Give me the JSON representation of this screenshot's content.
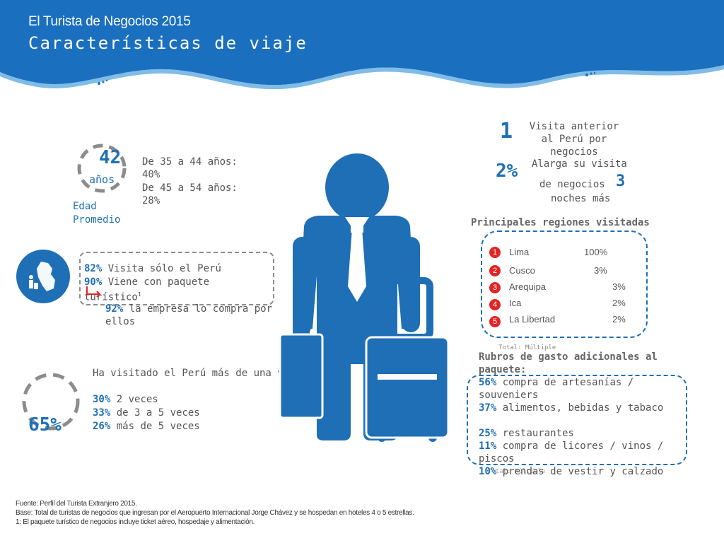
{
  "header": {
    "subtitle": "El Turista de Negocios 2015",
    "title": "Características de viaje"
  },
  "age": {
    "value": "42",
    "unit": "años",
    "label_line1": "Edad",
    "label_line2": "Promedio",
    "range1": "De 35 a 44 años: 40%",
    "range2": "De 45 a 54 años: 28%"
  },
  "peru_box": {
    "pct1": "82%",
    "text1": "Visita sólo el Perú",
    "pct2": "90%",
    "text2": "Viene con paquete turístico",
    "footnote_mark": "1",
    "pct3": "92%",
    "text3": "la empresa lo compra por ellos"
  },
  "visits": {
    "big_pct": "65%",
    "headline": "Ha visitado el Perú más de una vez",
    "rows": [
      {
        "pct": "30%",
        "text": "2 veces"
      },
      {
        "pct": "33%",
        "text": "de 3 a 5 veces"
      },
      {
        "pct": "26%",
        "text": "más de 5 veces"
      }
    ]
  },
  "previous": {
    "num": "1",
    "line1": "Visita anterior",
    "line2": "al Perú por",
    "line3": "negocios",
    "pct": "2%",
    "ext_line1": "Alarga su visita",
    "ext_line2": "de negocios",
    "nights": "3",
    "ext_line3": "noches más"
  },
  "regions": {
    "title": "Principales regiones visitadas",
    "items": [
      {
        "rank": "1",
        "name": "Lima",
        "pct": "100%"
      },
      {
        "rank": "2",
        "name": "Cusco",
        "pct": "3%"
      },
      {
        "rank": "3",
        "name": "Arequipa",
        "pct": "3%"
      },
      {
        "rank": "4",
        "name": "Ica",
        "pct": "2%"
      },
      {
        "rank": "5",
        "name": "La Libertad",
        "pct": "2%"
      }
    ],
    "note": "Total: Múltiple"
  },
  "spending": {
    "title": "Rubros de gasto adicionales al paquete:",
    "rows": [
      {
        "pct": "56%",
        "text": "compra de artesanías / souveniers"
      },
      {
        "pct": "37%",
        "text": "alimentos, bebidas y tabaco"
      },
      {
        "pct": "25%",
        "text": "restaurantes"
      },
      {
        "pct": "11%",
        "text": "compra de licores / vinos / piscos"
      },
      {
        "pct": "10%",
        "text": "prendas de vestir y calzado"
      }
    ],
    "note": "Total: Múltiple"
  },
  "footer": {
    "line1": "Fuente: Perfil del Turista Extranjero 2015.",
    "line2": "Base: Total de turistas de negocios que ingresan por el Aeropuerto Internacional Jorge Chávez y se hospedan en hoteles 4 o 5 estrellas.",
    "line3": "1:  El paquete turístico de negocios incluye ticket aéreo, hospedaje y alimentación."
  },
  "icons": [
    "businessman-with-luggage-icon",
    "peru-map-traveler-icon",
    "dashed-circle-icon"
  ],
  "colors": {
    "brand_blue": "#1f6fb6",
    "rank_red": "#e32424"
  }
}
